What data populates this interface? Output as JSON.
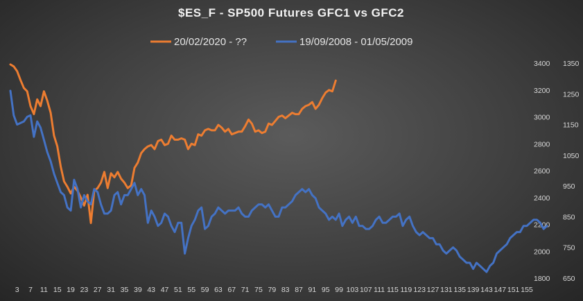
{
  "chart_data": {
    "type": "line",
    "title": "$ES_F  - SP500 Futures  GFC1  vs GFC2",
    "legend_position": "top",
    "grid": false,
    "x_ticks": [
      3,
      7,
      11,
      15,
      19,
      23,
      27,
      31,
      35,
      39,
      43,
      47,
      51,
      55,
      59,
      63,
      67,
      71,
      75,
      79,
      83,
      87,
      91,
      95,
      99,
      103,
      107,
      111,
      115,
      119,
      123,
      127,
      131,
      135,
      139,
      143,
      147,
      151,
      155
    ],
    "xlim": [
      1,
      155
    ],
    "y_left": {
      "ticks": [
        1800,
        2000,
        2200,
        2400,
        2600,
        2800,
        3000,
        3200,
        3400
      ],
      "range": [
        1800,
        3400
      ]
    },
    "y_right": {
      "ticks": [
        650,
        750,
        850,
        950,
        1050,
        1150,
        1250,
        1350
      ],
      "range": [
        650,
        1350
      ]
    },
    "series": [
      {
        "name": "20/02/2020  - ??",
        "color": "#ed7d31",
        "axis": "left",
        "values": [
          3390,
          3375,
          3340,
          3275,
          3215,
          3190,
          3080,
          3020,
          3130,
          3080,
          3190,
          3120,
          3030,
          2860,
          2780,
          2630,
          2520,
          2480,
          2430,
          2480,
          2450,
          2400,
          2340,
          2420,
          2210,
          2450,
          2470,
          2510,
          2590,
          2470,
          2580,
          2550,
          2590,
          2540,
          2510,
          2470,
          2490,
          2620,
          2660,
          2730,
          2760,
          2780,
          2790,
          2760,
          2820,
          2830,
          2790,
          2800,
          2860,
          2830,
          2830,
          2840,
          2830,
          2760,
          2800,
          2790,
          2870,
          2860,
          2900,
          2910,
          2900,
          2900,
          2940,
          2920,
          2890,
          2910,
          2870,
          2880,
          2890,
          2890,
          2930,
          2980,
          2950,
          2890,
          2900,
          2880,
          2890,
          2950,
          2940,
          2970,
          3000,
          3010,
          2990,
          3010,
          3030,
          3020,
          3020,
          3060,
          3080,
          3090,
          3110,
          3060,
          3090,
          3140,
          3180,
          3200,
          3190,
          3270
        ]
      },
      {
        "name": "19/09/2008 - 01/05/2009",
        "color": "#4472c4",
        "axis": "right",
        "values": [
          1260,
          1180,
          1150,
          1155,
          1160,
          1175,
          1180,
          1110,
          1160,
          1140,
          1100,
          1060,
          1030,
          990,
          960,
          930,
          920,
          880,
          870,
          970,
          940,
          880,
          920,
          900,
          890,
          940,
          930,
          890,
          860,
          860,
          870,
          920,
          930,
          890,
          920,
          920,
          940,
          960,
          920,
          940,
          920,
          830,
          870,
          850,
          820,
          830,
          860,
          850,
          820,
          800,
          830,
          830,
          730,
          780,
          820,
          840,
          870,
          880,
          810,
          820,
          850,
          860,
          880,
          870,
          860,
          870,
          870,
          870,
          880,
          860,
          850,
          850,
          870,
          880,
          890,
          890,
          880,
          890,
          870,
          850,
          850,
          880,
          880,
          890,
          900,
          920,
          930,
          940,
          930,
          940,
          920,
          910,
          880,
          870,
          860,
          840,
          850,
          840,
          860,
          820,
          840,
          850,
          830,
          850,
          820,
          820,
          810,
          810,
          820,
          840,
          850,
          830,
          830,
          840,
          850,
          850,
          860,
          820,
          840,
          850,
          820,
          800,
          790,
          800,
          790,
          780,
          780,
          760,
          760,
          740,
          730,
          740,
          750,
          740,
          720,
          710,
          700,
          700,
          680,
          700,
          690,
          680,
          670,
          690,
          700,
          730,
          740,
          750,
          760,
          780,
          790,
          800,
          800,
          820,
          820,
          830,
          840,
          840,
          830,
          810,
          820
        ]
      }
    ]
  }
}
